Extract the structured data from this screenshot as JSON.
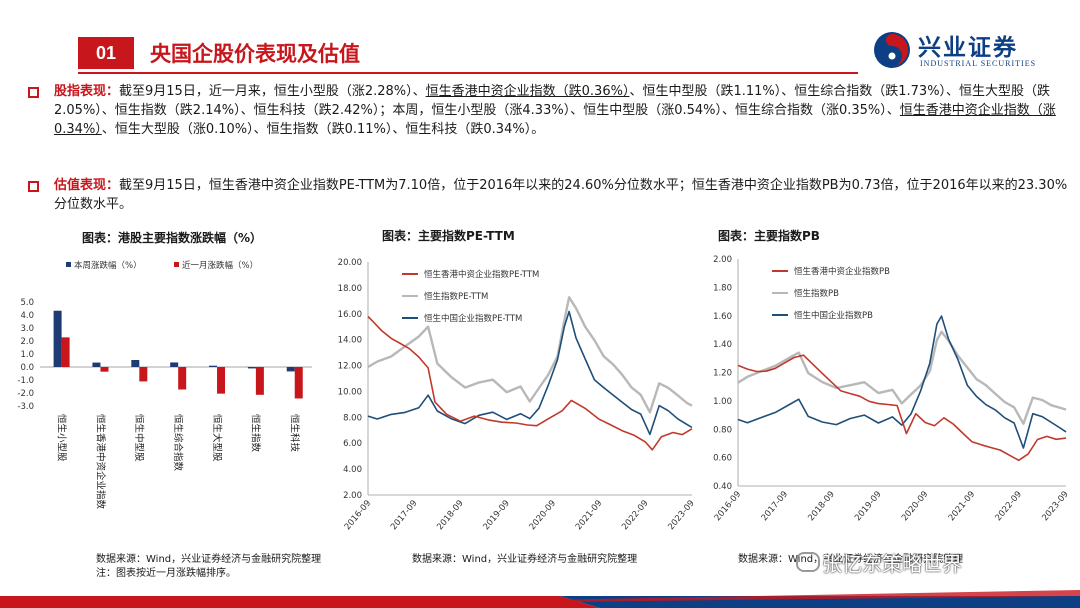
{
  "header": {
    "section_number": "01",
    "title": "央国企股价表现及估值",
    "logo_cn": "兴业证券",
    "logo_en": "INDUSTRIAL SECURITIES"
  },
  "bullets": [
    {
      "lead": "股指表现：",
      "segments": [
        {
          "t": "截至9月15日，近一月来，恒生小型股（涨2.28%）、"
        },
        {
          "t": "恒生香港中资企业指数（跌0.36%）",
          "u": true
        },
        {
          "t": "、恒生中型股（跌1.11%）、恒生综合指数（跌1.73%）、恒生大型股（跌2.05%）、恒生指数（跌2.14%）、恒生科技（跌2.42%）；本周，恒生小型股（涨4.33%）、恒生中型股（涨0.54%）、恒生综合指数（涨0.35%）、"
        },
        {
          "t": "恒生香港中资企业指数（涨0.34%）",
          "u": true
        },
        {
          "t": "、恒生大型股（涨0.10%）、恒生指数（跌0.11%）、恒生科技（跌0.34%）。"
        }
      ]
    },
    {
      "lead": "估值表现：",
      "segments": [
        {
          "t": "截至9月15日，恒生香港中资企业指数PE-TTM为7.10倍，位于2016年以来的24.60%分位数水平；恒生香港中资企业指数PB为0.73倍，位于2016年以来的23.30%分位数水平。"
        }
      ]
    }
  ],
  "colors": {
    "brand_red": "#c8161d",
    "navy": "#1f3b73",
    "grey": "#b8b8b8",
    "blue": "#1f4e79",
    "red_line": "#c0392b"
  },
  "chart_data": [
    {
      "type": "bar",
      "title": "图表：港股主要指数涨跌幅（%）",
      "categories": [
        "恒生小型股",
        "恒生香港中资企业指数",
        "恒生中型股",
        "恒生综合指数",
        "恒生大型股",
        "恒生指数",
        "恒生科技"
      ],
      "series": [
        {
          "name": "本周涨跌幅（%）",
          "color": "#1f3b73",
          "values": [
            4.33,
            0.34,
            0.54,
            0.35,
            0.1,
            -0.11,
            -0.34
          ]
        },
        {
          "name": "近一月涨跌幅（%）",
          "color": "#c8161d",
          "values": [
            2.28,
            -0.36,
            -1.11,
            -1.73,
            -2.05,
            -2.14,
            -2.42
          ]
        }
      ],
      "yticks": [
        "5.0",
        "4.0",
        "3.0",
        "2.0",
        "1.0",
        "0.0",
        "-1.0",
        "-2.0",
        "-3.0"
      ],
      "ylim": [
        -3,
        5
      ],
      "legend": "top",
      "source": "数据来源：Wind，兴业证券经济与金融研究院整理",
      "note": "注：图表按近一月涨跌幅排序。"
    },
    {
      "type": "line",
      "title": "图表：主要指数PE-TTM",
      "xticks": [
        "2016-09",
        "2017-09",
        "2018-09",
        "2019-09",
        "2020-09",
        "2021-09",
        "2022-09",
        "2023-09"
      ],
      "xlim": [
        2016.7,
        2023.71
      ],
      "yticks": [
        "20.00",
        "18.00",
        "16.00",
        "14.00",
        "12.00",
        "10.00",
        "8.00",
        "6.00",
        "4.00",
        "2.00"
      ],
      "ylim": [
        2,
        20
      ],
      "legend": "top-left",
      "series": [
        {
          "name": "恒生香港中资企业指数PE-TTM",
          "color": "#c0392b",
          "x": [
            2016.7,
            2016.85,
            2017.0,
            2017.2,
            2017.4,
            2017.6,
            2017.8,
            2018.0,
            2018.15,
            2018.4,
            2018.7,
            2019.0,
            2019.3,
            2019.6,
            2019.9,
            2020.15,
            2020.35,
            2020.6,
            2020.9,
            2021.1,
            2021.4,
            2021.7,
            2021.95,
            2022.2,
            2022.45,
            2022.7,
            2022.85,
            2023.05,
            2023.3,
            2023.5,
            2023.71
          ],
          "y": [
            15.8,
            15.2,
            14.6,
            14.0,
            13.6,
            13.2,
            12.6,
            11.8,
            9.2,
            8.3,
            7.8,
            8.2,
            7.9,
            7.7,
            7.6,
            7.4,
            7.3,
            7.8,
            8.4,
            9.2,
            8.6,
            7.8,
            7.4,
            7.0,
            6.7,
            6.2,
            5.6,
            6.6,
            6.9,
            6.7,
            7.1
          ]
        },
        {
          "name": "恒生指数PE-TTM",
          "color": "#b8b8b8",
          "x": [
            2016.7,
            2016.9,
            2017.2,
            2017.5,
            2017.8,
            2018.0,
            2018.2,
            2018.5,
            2018.8,
            2019.1,
            2019.4,
            2019.7,
            2020.0,
            2020.2,
            2020.4,
            2020.6,
            2020.8,
            2020.95,
            2021.05,
            2021.2,
            2021.4,
            2021.6,
            2021.8,
            2022.0,
            2022.2,
            2022.4,
            2022.6,
            2022.8,
            2023.0,
            2023.2,
            2023.4,
            2023.6,
            2023.71
          ],
          "y": [
            11.8,
            12.2,
            12.6,
            13.4,
            14.2,
            15.0,
            12.2,
            11.2,
            10.4,
            10.8,
            11.0,
            10.0,
            10.4,
            9.2,
            10.2,
            11.2,
            12.6,
            15.4,
            17.2,
            16.4,
            15.0,
            14.0,
            12.8,
            12.2,
            11.4,
            10.4,
            9.8,
            8.4,
            10.6,
            10.2,
            9.6,
            9.0,
            8.8
          ]
        },
        {
          "name": "恒生中国企业指数PE-TTM",
          "color": "#1f4e79",
          "x": [
            2016.7,
            2016.9,
            2017.2,
            2017.5,
            2017.8,
            2018.0,
            2018.2,
            2018.5,
            2018.8,
            2019.1,
            2019.4,
            2019.7,
            2020.0,
            2020.2,
            2020.4,
            2020.6,
            2020.8,
            2020.95,
            2021.05,
            2021.2,
            2021.4,
            2021.6,
            2021.8,
            2022.0,
            2022.2,
            2022.4,
            2022.6,
            2022.8,
            2023.0,
            2023.2,
            2023.4,
            2023.6,
            2023.71
          ],
          "y": [
            8.0,
            7.8,
            8.2,
            8.4,
            8.8,
            9.8,
            8.6,
            8.0,
            7.6,
            8.2,
            8.4,
            7.8,
            8.2,
            7.8,
            8.6,
            10.4,
            12.4,
            15.0,
            16.2,
            14.2,
            12.6,
            11.0,
            10.4,
            9.8,
            9.2,
            8.6,
            8.2,
            6.6,
            8.8,
            8.4,
            7.8,
            7.4,
            7.2
          ]
        }
      ],
      "source": "数据来源：Wind，兴业证券经济与金融研究院整理"
    },
    {
      "type": "line",
      "title": "图表：主要指数PB",
      "xticks": [
        "2016-09",
        "2017-09",
        "2018-09",
        "2019-09",
        "2020-09",
        "2021-09",
        "2022-09",
        "2023-09"
      ],
      "xlim": [
        2016.7,
        2023.71
      ],
      "yticks": [
        "2.00",
        "1.80",
        "1.60",
        "1.40",
        "1.20",
        "1.00",
        "0.80",
        "0.60",
        "0.40"
      ],
      "ylim": [
        0.4,
        2.0
      ],
      "legend": "top-left",
      "series": [
        {
          "name": "恒生香港中资企业指数PB",
          "color": "#c0392b",
          "x": [
            2016.7,
            2016.9,
            2017.1,
            2017.3,
            2017.5,
            2017.7,
            2017.9,
            2018.1,
            2018.3,
            2018.5,
            2018.7,
            2018.9,
            2019.1,
            2019.3,
            2019.5,
            2019.7,
            2019.9,
            2020.1,
            2020.3,
            2020.5,
            2020.7,
            2020.9,
            2021.1,
            2021.3,
            2021.5,
            2021.7,
            2021.9,
            2022.1,
            2022.3,
            2022.5,
            2022.7,
            2022.9,
            2023.1,
            2023.3,
            2023.5,
            2023.71
          ],
          "y": [
            1.25,
            1.22,
            1.2,
            1.2,
            1.22,
            1.26,
            1.3,
            1.32,
            1.26,
            1.2,
            1.14,
            1.08,
            1.06,
            1.04,
            1.0,
            0.98,
            0.97,
            0.96,
            0.76,
            0.9,
            0.84,
            0.82,
            0.88,
            0.84,
            0.78,
            0.72,
            0.7,
            0.68,
            0.66,
            0.62,
            0.58,
            0.62,
            0.72,
            0.74,
            0.72,
            0.73
          ]
        },
        {
          "name": "恒生指数PB",
          "color": "#b8b8b8",
          "x": [
            2016.7,
            2016.9,
            2017.2,
            2017.5,
            2017.8,
            2018.0,
            2018.2,
            2018.5,
            2018.8,
            2019.1,
            2019.4,
            2019.7,
            2020.0,
            2020.2,
            2020.4,
            2020.6,
            2020.8,
            2020.95,
            2021.05,
            2021.2,
            2021.4,
            2021.6,
            2021.8,
            2022.0,
            2022.2,
            2022.4,
            2022.6,
            2022.8,
            2023.0,
            2023.2,
            2023.4,
            2023.6,
            2023.71
          ],
          "y": [
            1.12,
            1.16,
            1.2,
            1.24,
            1.3,
            1.34,
            1.2,
            1.14,
            1.1,
            1.12,
            1.14,
            1.06,
            1.08,
            0.98,
            1.04,
            1.1,
            1.2,
            1.42,
            1.48,
            1.42,
            1.32,
            1.24,
            1.16,
            1.12,
            1.06,
            1.0,
            0.96,
            0.84,
            1.02,
            1.0,
            0.96,
            0.94,
            0.93
          ]
        },
        {
          "name": "恒生中国企业指数PB",
          "color": "#1f4e79",
          "x": [
            2016.7,
            2016.9,
            2017.2,
            2017.5,
            2017.8,
            2018.0,
            2018.2,
            2018.5,
            2018.8,
            2019.1,
            2019.4,
            2019.7,
            2020.0,
            2020.2,
            2020.4,
            2020.6,
            2020.8,
            2020.95,
            2021.05,
            2021.2,
            2021.4,
            2021.6,
            2021.8,
            2022.0,
            2022.2,
            2022.4,
            2022.6,
            2022.8,
            2023.0,
            2023.2,
            2023.4,
            2023.6,
            2023.71
          ],
          "y": [
            0.86,
            0.84,
            0.88,
            0.92,
            0.98,
            1.02,
            0.9,
            0.86,
            0.84,
            0.88,
            0.9,
            0.84,
            0.88,
            0.82,
            0.9,
            1.06,
            1.26,
            1.54,
            1.6,
            1.44,
            1.3,
            1.12,
            1.04,
            0.98,
            0.94,
            0.88,
            0.84,
            0.66,
            0.9,
            0.88,
            0.84,
            0.8,
            0.78
          ]
        }
      ],
      "source": "数据来源：Wind，兴业证券经济与金融研究院整理"
    }
  ],
  "watermark": "张忆东策略世界"
}
